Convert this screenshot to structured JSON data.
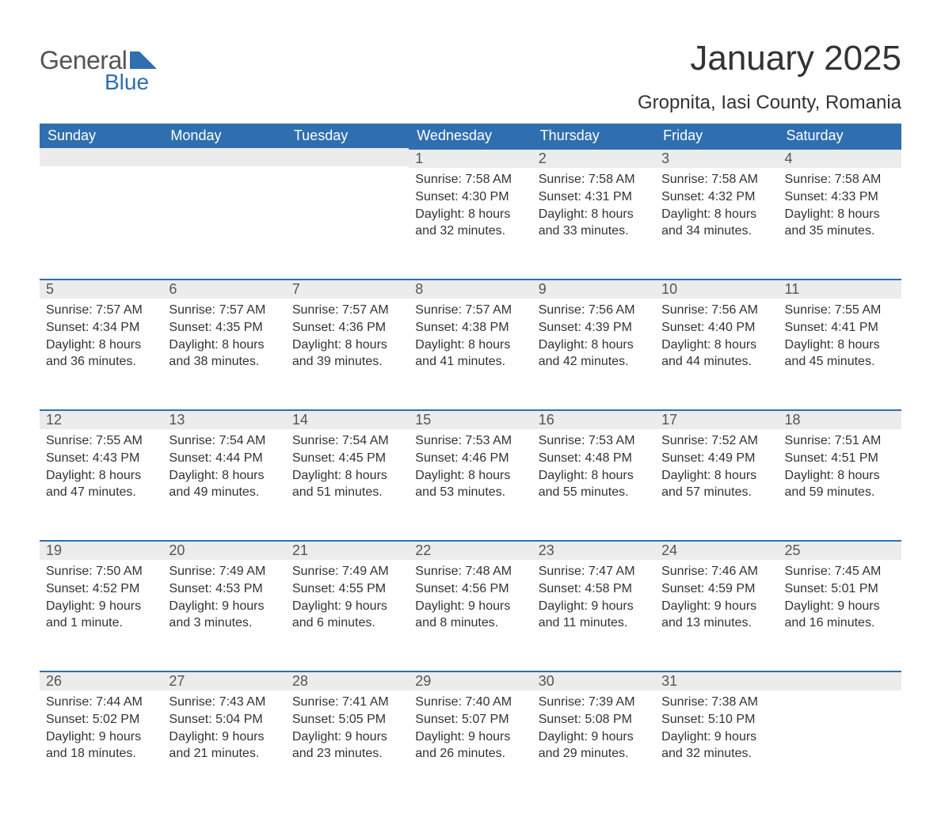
{
  "logo": {
    "word1": "General",
    "word2": "Blue"
  },
  "title": "January 2025",
  "location": "Gropnita, Iasi County, Romania",
  "colors": {
    "header_bg": "#2f6fb0",
    "header_text": "#ffffff",
    "daynum_bg": "#ececec",
    "daynum_border": "#2f6fb0",
    "body_text": "#333333",
    "logo_gray": "#555555",
    "logo_blue": "#2f6fb0",
    "page_bg": "#ffffff"
  },
  "weekdays": [
    "Sunday",
    "Monday",
    "Tuesday",
    "Wednesday",
    "Thursday",
    "Friday",
    "Saturday"
  ],
  "weeks": [
    [
      null,
      null,
      null,
      {
        "n": "1",
        "sunrise": "Sunrise: 7:58 AM",
        "sunset": "Sunset: 4:30 PM",
        "day1": "Daylight: 8 hours",
        "day2": "and 32 minutes."
      },
      {
        "n": "2",
        "sunrise": "Sunrise: 7:58 AM",
        "sunset": "Sunset: 4:31 PM",
        "day1": "Daylight: 8 hours",
        "day2": "and 33 minutes."
      },
      {
        "n": "3",
        "sunrise": "Sunrise: 7:58 AM",
        "sunset": "Sunset: 4:32 PM",
        "day1": "Daylight: 8 hours",
        "day2": "and 34 minutes."
      },
      {
        "n": "4",
        "sunrise": "Sunrise: 7:58 AM",
        "sunset": "Sunset: 4:33 PM",
        "day1": "Daylight: 8 hours",
        "day2": "and 35 minutes."
      }
    ],
    [
      {
        "n": "5",
        "sunrise": "Sunrise: 7:57 AM",
        "sunset": "Sunset: 4:34 PM",
        "day1": "Daylight: 8 hours",
        "day2": "and 36 minutes."
      },
      {
        "n": "6",
        "sunrise": "Sunrise: 7:57 AM",
        "sunset": "Sunset: 4:35 PM",
        "day1": "Daylight: 8 hours",
        "day2": "and 38 minutes."
      },
      {
        "n": "7",
        "sunrise": "Sunrise: 7:57 AM",
        "sunset": "Sunset: 4:36 PM",
        "day1": "Daylight: 8 hours",
        "day2": "and 39 minutes."
      },
      {
        "n": "8",
        "sunrise": "Sunrise: 7:57 AM",
        "sunset": "Sunset: 4:38 PM",
        "day1": "Daylight: 8 hours",
        "day2": "and 41 minutes."
      },
      {
        "n": "9",
        "sunrise": "Sunrise: 7:56 AM",
        "sunset": "Sunset: 4:39 PM",
        "day1": "Daylight: 8 hours",
        "day2": "and 42 minutes."
      },
      {
        "n": "10",
        "sunrise": "Sunrise: 7:56 AM",
        "sunset": "Sunset: 4:40 PM",
        "day1": "Daylight: 8 hours",
        "day2": "and 44 minutes."
      },
      {
        "n": "11",
        "sunrise": "Sunrise: 7:55 AM",
        "sunset": "Sunset: 4:41 PM",
        "day1": "Daylight: 8 hours",
        "day2": "and 45 minutes."
      }
    ],
    [
      {
        "n": "12",
        "sunrise": "Sunrise: 7:55 AM",
        "sunset": "Sunset: 4:43 PM",
        "day1": "Daylight: 8 hours",
        "day2": "and 47 minutes."
      },
      {
        "n": "13",
        "sunrise": "Sunrise: 7:54 AM",
        "sunset": "Sunset: 4:44 PM",
        "day1": "Daylight: 8 hours",
        "day2": "and 49 minutes."
      },
      {
        "n": "14",
        "sunrise": "Sunrise: 7:54 AM",
        "sunset": "Sunset: 4:45 PM",
        "day1": "Daylight: 8 hours",
        "day2": "and 51 minutes."
      },
      {
        "n": "15",
        "sunrise": "Sunrise: 7:53 AM",
        "sunset": "Sunset: 4:46 PM",
        "day1": "Daylight: 8 hours",
        "day2": "and 53 minutes."
      },
      {
        "n": "16",
        "sunrise": "Sunrise: 7:53 AM",
        "sunset": "Sunset: 4:48 PM",
        "day1": "Daylight: 8 hours",
        "day2": "and 55 minutes."
      },
      {
        "n": "17",
        "sunrise": "Sunrise: 7:52 AM",
        "sunset": "Sunset: 4:49 PM",
        "day1": "Daylight: 8 hours",
        "day2": "and 57 minutes."
      },
      {
        "n": "18",
        "sunrise": "Sunrise: 7:51 AM",
        "sunset": "Sunset: 4:51 PM",
        "day1": "Daylight: 8 hours",
        "day2": "and 59 minutes."
      }
    ],
    [
      {
        "n": "19",
        "sunrise": "Sunrise: 7:50 AM",
        "sunset": "Sunset: 4:52 PM",
        "day1": "Daylight: 9 hours",
        "day2": "and 1 minute."
      },
      {
        "n": "20",
        "sunrise": "Sunrise: 7:49 AM",
        "sunset": "Sunset: 4:53 PM",
        "day1": "Daylight: 9 hours",
        "day2": "and 3 minutes."
      },
      {
        "n": "21",
        "sunrise": "Sunrise: 7:49 AM",
        "sunset": "Sunset: 4:55 PM",
        "day1": "Daylight: 9 hours",
        "day2": "and 6 minutes."
      },
      {
        "n": "22",
        "sunrise": "Sunrise: 7:48 AM",
        "sunset": "Sunset: 4:56 PM",
        "day1": "Daylight: 9 hours",
        "day2": "and 8 minutes."
      },
      {
        "n": "23",
        "sunrise": "Sunrise: 7:47 AM",
        "sunset": "Sunset: 4:58 PM",
        "day1": "Daylight: 9 hours",
        "day2": "and 11 minutes."
      },
      {
        "n": "24",
        "sunrise": "Sunrise: 7:46 AM",
        "sunset": "Sunset: 4:59 PM",
        "day1": "Daylight: 9 hours",
        "day2": "and 13 minutes."
      },
      {
        "n": "25",
        "sunrise": "Sunrise: 7:45 AM",
        "sunset": "Sunset: 5:01 PM",
        "day1": "Daylight: 9 hours",
        "day2": "and 16 minutes."
      }
    ],
    [
      {
        "n": "26",
        "sunrise": "Sunrise: 7:44 AM",
        "sunset": "Sunset: 5:02 PM",
        "day1": "Daylight: 9 hours",
        "day2": "and 18 minutes."
      },
      {
        "n": "27",
        "sunrise": "Sunrise: 7:43 AM",
        "sunset": "Sunset: 5:04 PM",
        "day1": "Daylight: 9 hours",
        "day2": "and 21 minutes."
      },
      {
        "n": "28",
        "sunrise": "Sunrise: 7:41 AM",
        "sunset": "Sunset: 5:05 PM",
        "day1": "Daylight: 9 hours",
        "day2": "and 23 minutes."
      },
      {
        "n": "29",
        "sunrise": "Sunrise: 7:40 AM",
        "sunset": "Sunset: 5:07 PM",
        "day1": "Daylight: 9 hours",
        "day2": "and 26 minutes."
      },
      {
        "n": "30",
        "sunrise": "Sunrise: 7:39 AM",
        "sunset": "Sunset: 5:08 PM",
        "day1": "Daylight: 9 hours",
        "day2": "and 29 minutes."
      },
      {
        "n": "31",
        "sunrise": "Sunrise: 7:38 AM",
        "sunset": "Sunset: 5:10 PM",
        "day1": "Daylight: 9 hours",
        "day2": "and 32 minutes."
      },
      null
    ]
  ]
}
